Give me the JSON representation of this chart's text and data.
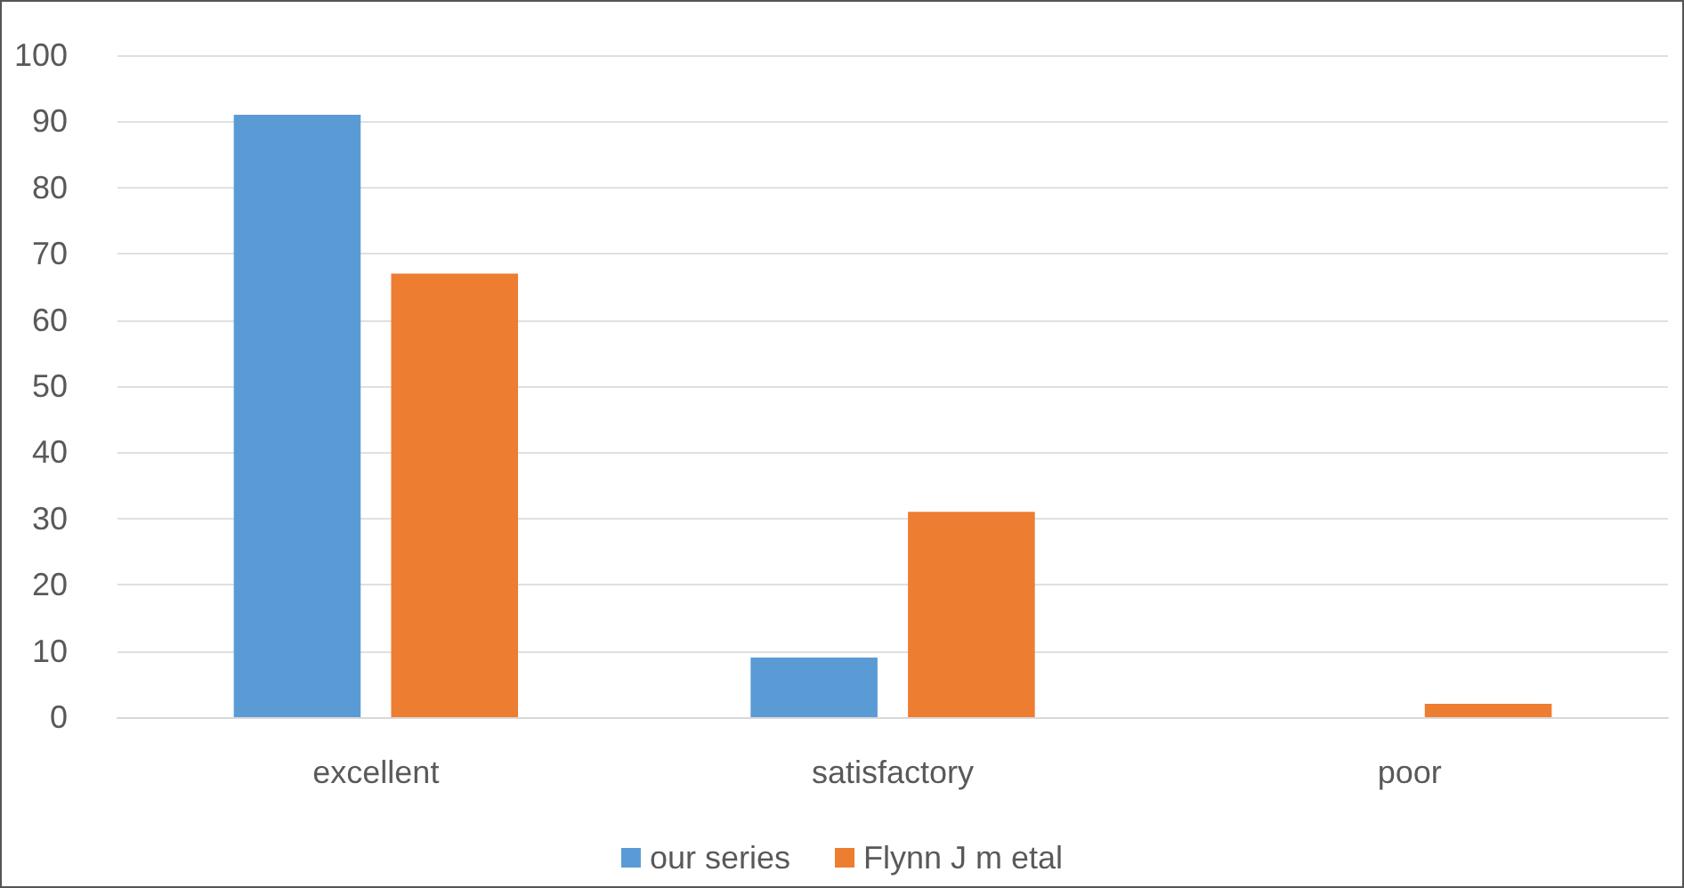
{
  "chart_data": {
    "type": "bar",
    "categories": [
      "excellent",
      "satisfactory",
      "poor"
    ],
    "series": [
      {
        "name": "our series",
        "color": "#5b9bd5",
        "values": [
          91,
          9,
          0
        ]
      },
      {
        "name": "Flynn J m etal",
        "color": "#ed7d31",
        "values": [
          67,
          31,
          2
        ]
      }
    ],
    "ylim": [
      0,
      100
    ],
    "yticks": [
      0,
      10,
      20,
      30,
      40,
      50,
      60,
      70,
      80,
      90,
      100
    ],
    "grid": "y",
    "legend": "bottom"
  }
}
